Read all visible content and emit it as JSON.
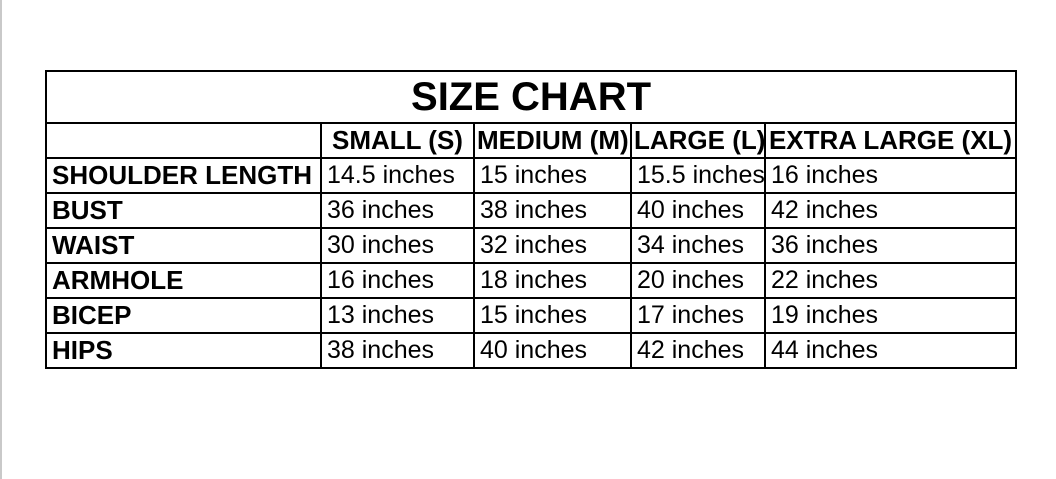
{
  "page": {
    "background_color": "#ffffff",
    "edge_line_color": "#c9c9c9",
    "border_color": "#000000",
    "text_color": "#000000"
  },
  "table": {
    "title": "SIZE CHART",
    "columns": [
      "",
      "SMALL (S)",
      "MEDIUM (M)",
      "LARGE (L)",
      "EXTRA LARGE (XL)"
    ],
    "rows": [
      {
        "label": "SHOULDER LENGTH",
        "values": [
          "14.5 inches",
          "15 inches",
          "15.5 inches",
          "16 inches"
        ]
      },
      {
        "label": "BUST",
        "values": [
          "36 inches",
          "38 inches",
          "40 inches",
          "42 inches"
        ]
      },
      {
        "label": "WAIST",
        "values": [
          "30 inches",
          "32 inches",
          "34 inches",
          "36 inches"
        ]
      },
      {
        "label": "ARMHOLE",
        "values": [
          "16 inches",
          "18 inches",
          "20 inches",
          "22 inches"
        ]
      },
      {
        "label": "BICEP",
        "values": [
          "13 inches",
          "15 inches",
          "17 inches",
          "19 inches"
        ]
      },
      {
        "label": "HIPS",
        "values": [
          "38 inches",
          "40 inches",
          "42 inches",
          "44 inches"
        ]
      }
    ]
  },
  "chart_data": {
    "type": "table",
    "title": "SIZE CHART",
    "columns": [
      "",
      "SMALL (S)",
      "MEDIUM (M)",
      "LARGE (L)",
      "EXTRA LARGE (XL)"
    ],
    "rows": [
      [
        "SHOULDER LENGTH",
        "14.5 inches",
        "15 inches",
        "15.5 inches",
        "16 inches"
      ],
      [
        "BUST",
        "36 inches",
        "38 inches",
        "40 inches",
        "42 inches"
      ],
      [
        "WAIST",
        "30 inches",
        "32 inches",
        "34 inches",
        "36 inches"
      ],
      [
        "ARMHOLE",
        "16 inches",
        "18 inches",
        "20 inches",
        "22 inches"
      ],
      [
        "BICEP",
        "13 inches",
        "15 inches",
        "17 inches",
        "19 inches"
      ],
      [
        "HIPS",
        "38 inches",
        "40 inches",
        "42 inches",
        "44 inches"
      ]
    ],
    "units": "inches",
    "measurements_numeric": {
      "categories": [
        "SMALL (S)",
        "MEDIUM (M)",
        "LARGE (L)",
        "EXTRA LARGE (XL)"
      ],
      "series": [
        {
          "name": "SHOULDER LENGTH",
          "values": [
            14.5,
            15,
            15.5,
            16
          ]
        },
        {
          "name": "BUST",
          "values": [
            36,
            38,
            40,
            42
          ]
        },
        {
          "name": "WAIST",
          "values": [
            30,
            32,
            34,
            36
          ]
        },
        {
          "name": "ARMHOLE",
          "values": [
            16,
            18,
            20,
            22
          ]
        },
        {
          "name": "BICEP",
          "values": [
            13,
            15,
            17,
            19
          ]
        },
        {
          "name": "HIPS",
          "values": [
            38,
            40,
            42,
            44
          ]
        }
      ]
    }
  }
}
